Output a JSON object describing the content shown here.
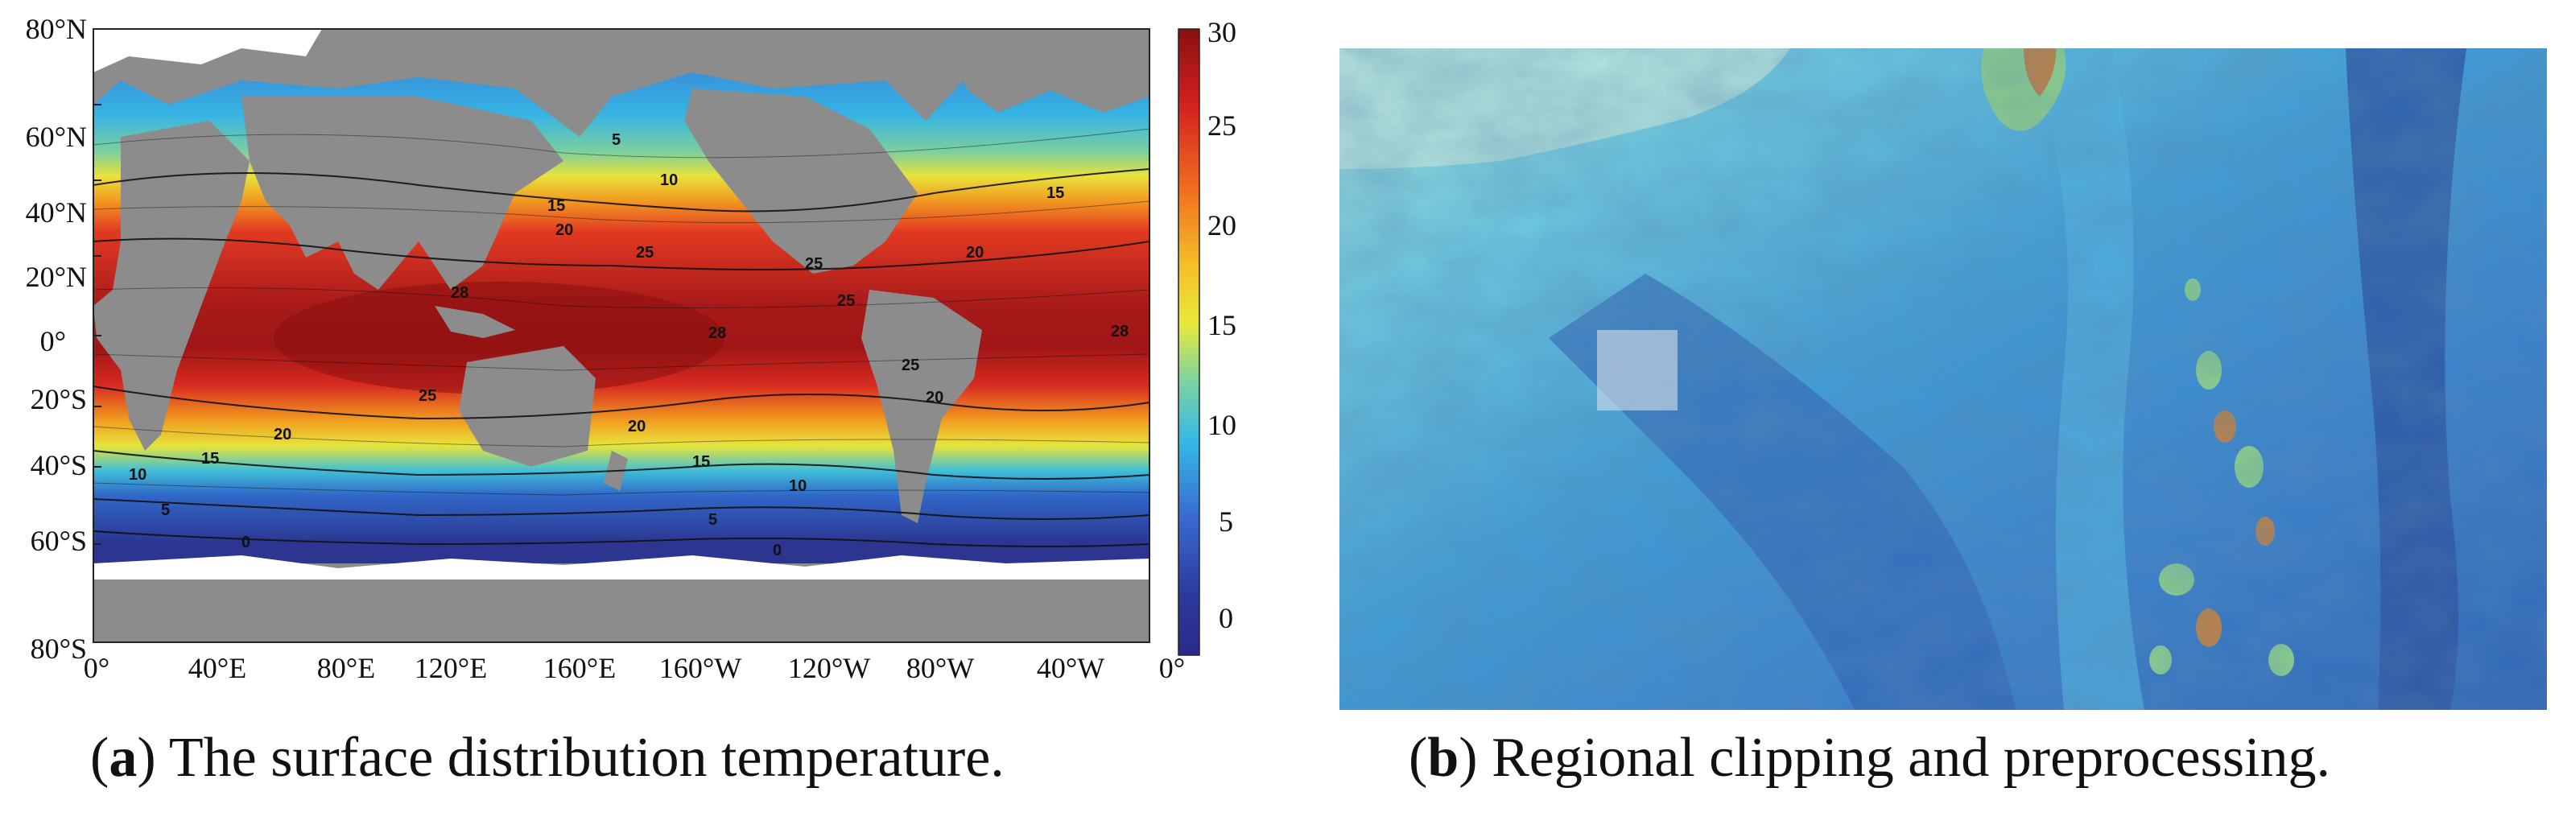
{
  "panel_a": {
    "caption_letter": "a",
    "caption_text": "The surface distribution temperature.",
    "lat_ticks": [
      "80°N",
      "60°N",
      "40°N",
      "20°N",
      "0°",
      "20°S",
      "40°S",
      "60°S",
      "80°S"
    ],
    "lon_ticks": [
      "0°",
      "40°E",
      "80°E",
      "120°E",
      "160°E",
      "160°W",
      "120°W",
      "80°W",
      "40°W",
      "0°"
    ],
    "colorbar_ticks": [
      "30",
      "25",
      "20",
      "15",
      "10",
      "5",
      "0"
    ],
    "colorbar_range": [
      -2,
      30
    ],
    "contour_labels": [
      "5",
      "10",
      "15",
      "20",
      "25",
      "28",
      "25",
      "20",
      "15",
      "10",
      "5",
      "0",
      "25",
      "28",
      "20",
      "15",
      "10",
      "5",
      "0",
      "15",
      "20",
      "25",
      "28",
      "25",
      "20"
    ],
    "colors": {
      "land": "#8c8c8c",
      "ice": "#ffffff",
      "scale": [
        "#303396",
        "#3a6fd0",
        "#38b8e6",
        "#78d0a8",
        "#e9e83a",
        "#f4a020",
        "#e43820",
        "#a01818"
      ]
    }
  },
  "panel_b": {
    "caption_letter": "b",
    "caption_text": "Regional clipping and preprocessing.",
    "colors": {
      "deep": "#2a5fb0",
      "mid": "#3d9fd4",
      "shallow": "#7fd4e0",
      "land": "#8ccf8a",
      "highland": "#c08040",
      "selection": "#d8dde8"
    }
  }
}
